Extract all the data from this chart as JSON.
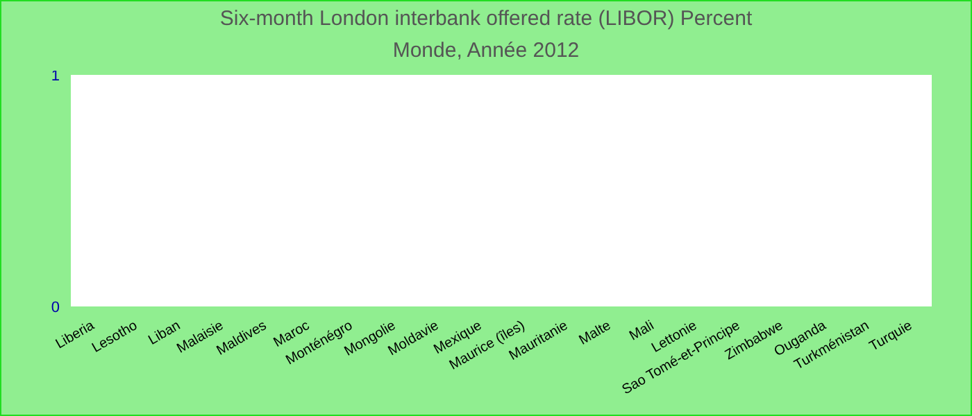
{
  "chart_data": {
    "type": "bar",
    "title": "Six-month London interbank offered rate (LIBOR)  Percent",
    "subtitle": "Monde, Année 2012",
    "categories": [
      "Liberia",
      "Lesotho",
      "Liban",
      "Malaisie",
      "Maldives",
      "Maroc",
      "Monténégro",
      "Mongolie",
      "Moldavie",
      "Mexique",
      "Maurice (îles)",
      "Mauritanie",
      "Malte",
      "Mali",
      "Lettonie",
      "Sao Tomé-et-Principe",
      "Zimbabwe",
      "Ouganda",
      "Turkménistan",
      "Turquie"
    ],
    "values": [
      0,
      0,
      0,
      0,
      0,
      0,
      0,
      0,
      0,
      0,
      0,
      0,
      0,
      0,
      0,
      0,
      0,
      0,
      0,
      0
    ],
    "ylim": [
      0,
      1
    ],
    "yticks": [
      0,
      1
    ],
    "grid": false
  }
}
